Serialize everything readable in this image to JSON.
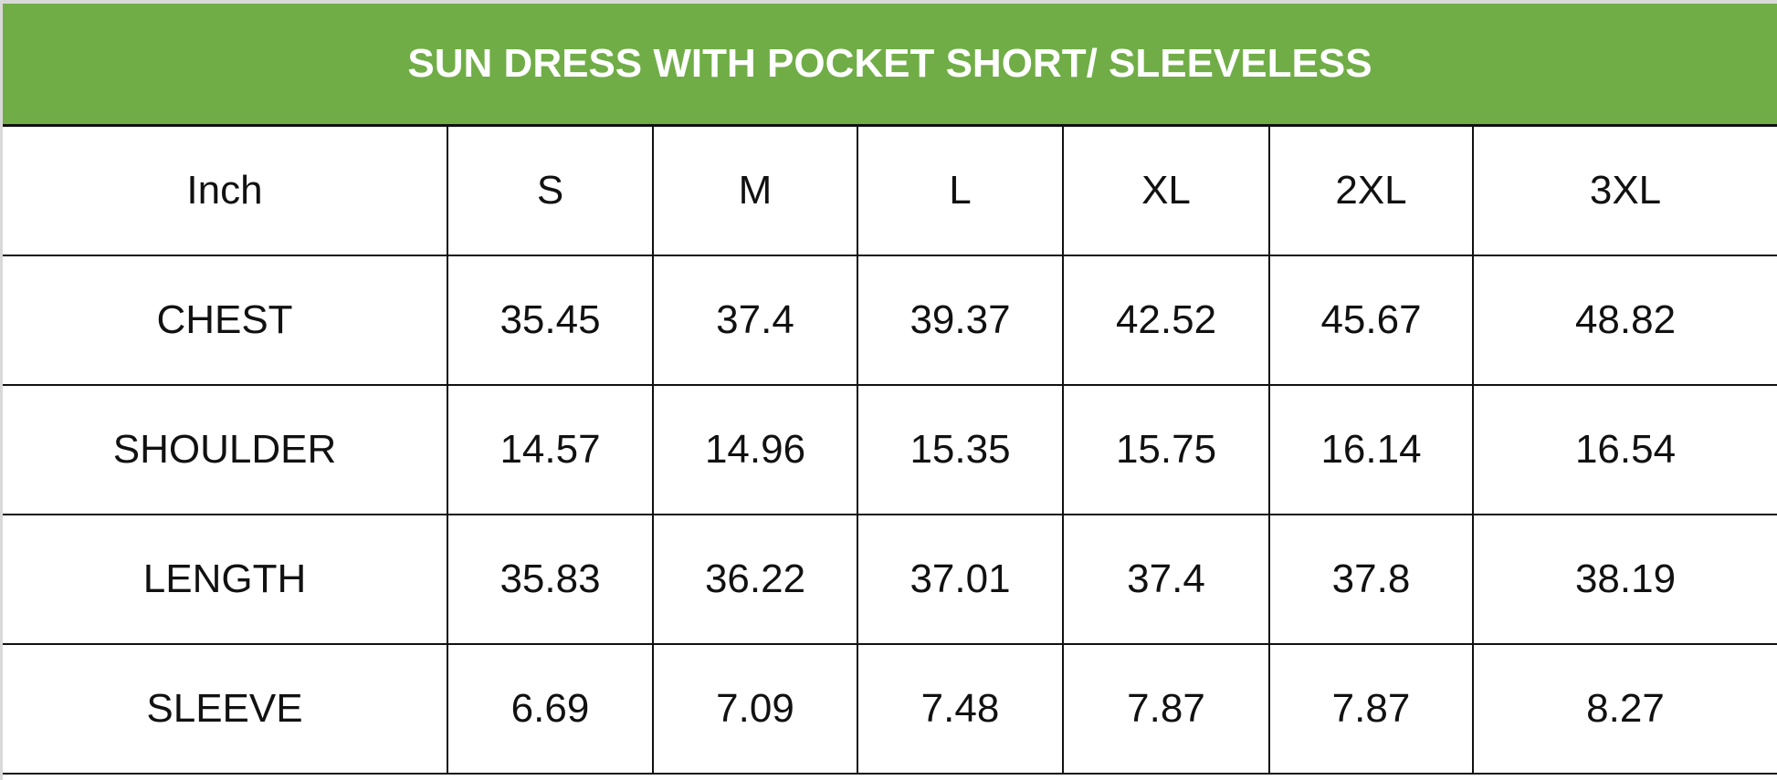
{
  "title": "SUN DRESS WITH POCKET SHORT/ SLEEVELESS",
  "colors": {
    "header_bg": "#70ad47",
    "header_text": "#ffffff"
  },
  "header": [
    "Inch",
    "S",
    "M",
    "L",
    "XL",
    "2XL",
    "3XL"
  ],
  "rows": [
    [
      "CHEST",
      "35.45",
      "37.4",
      "39.37",
      "42.52",
      "45.67",
      "48.82"
    ],
    [
      "SHOULDER",
      "14.57",
      "14.96",
      "15.35",
      "15.75",
      "16.14",
      "16.54"
    ],
    [
      "LENGTH",
      "35.83",
      "36.22",
      "37.01",
      "37.4",
      "37.8",
      "38.19"
    ],
    [
      "SLEEVE",
      "6.69",
      "7.09",
      "7.48",
      "7.87",
      "7.87",
      "8.27"
    ]
  ]
}
